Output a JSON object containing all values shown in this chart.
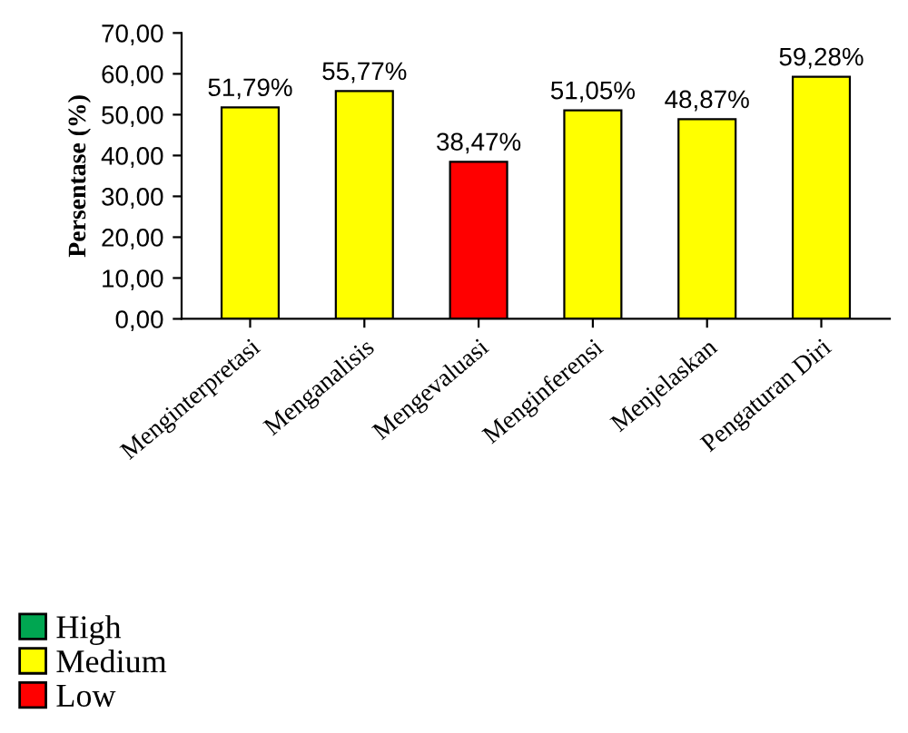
{
  "chart_data": {
    "type": "bar",
    "ylabel": "Persentase (%)",
    "categories": [
      "Menginterpretasi",
      "Menganalisis",
      "Mengevaluasi",
      "Menginferensi",
      "Menjelaskan",
      "Pengaturan Diri"
    ],
    "stacked": true,
    "series": [
      {
        "name": "High",
        "color": "#00a651",
        "values": [
          null,
          null,
          null,
          null,
          null,
          null
        ],
        "value_labels": [
          null,
          null,
          null,
          null,
          null,
          null
        ]
      },
      {
        "name": "Medium",
        "color": "#ffff00",
        "values": [
          51.79,
          55.77,
          null,
          51.05,
          48.87,
          59.28
        ],
        "value_labels": [
          "51,79%",
          "55,77%",
          null,
          "51,05%",
          "48,87%",
          "59,28%"
        ]
      },
      {
        "name": "Low",
        "color": "#ff0000",
        "values": [
          null,
          null,
          38.47,
          null,
          null,
          null
        ],
        "value_labels": [
          null,
          null,
          "38,47%",
          null,
          null,
          null
        ]
      }
    ],
    "ylim": [
      0,
      70
    ],
    "yticks": [
      {
        "value": 0,
        "label": "0,00"
      },
      {
        "value": 10,
        "label": "10,00"
      },
      {
        "value": 20,
        "label": "20,00"
      },
      {
        "value": 30,
        "label": "30,00"
      },
      {
        "value": 40,
        "label": "40,00"
      },
      {
        "value": 50,
        "label": "50,00"
      },
      {
        "value": 60,
        "label": "60,00"
      },
      {
        "value": 70,
        "label": "70,00"
      }
    ],
    "legend": "bottom left",
    "grid": false
  }
}
